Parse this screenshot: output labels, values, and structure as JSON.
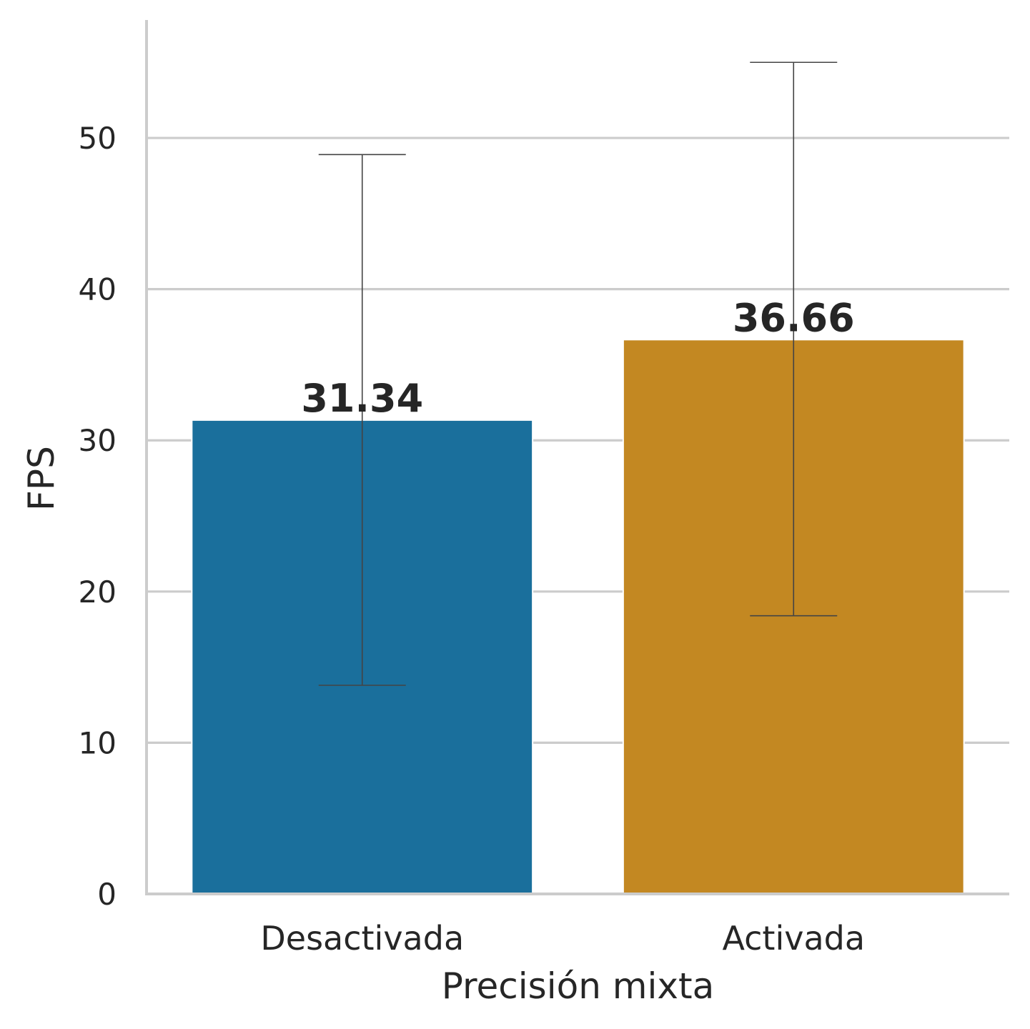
{
  "chart_data": {
    "type": "bar",
    "title": "",
    "xlabel": "Precisión mixta",
    "ylabel": "FPS",
    "categories": [
      "Desactivada",
      "Activada"
    ],
    "values": [
      31.34,
      36.66
    ],
    "value_labels": [
      "31.34",
      "36.66"
    ],
    "error_bars": [
      {
        "low": 13.8,
        "high": 48.9
      },
      {
        "low": 18.4,
        "high": 55.0
      }
    ],
    "colors": [
      "#1a6f9c",
      "#c38822"
    ],
    "ylim": [
      0,
      57.8
    ],
    "yticks": [
      0,
      10,
      20,
      30,
      40,
      50
    ],
    "ytick_labels": [
      "0",
      "10",
      "20",
      "30",
      "40",
      "50"
    ],
    "grid": "horizontal",
    "legend": "none"
  }
}
